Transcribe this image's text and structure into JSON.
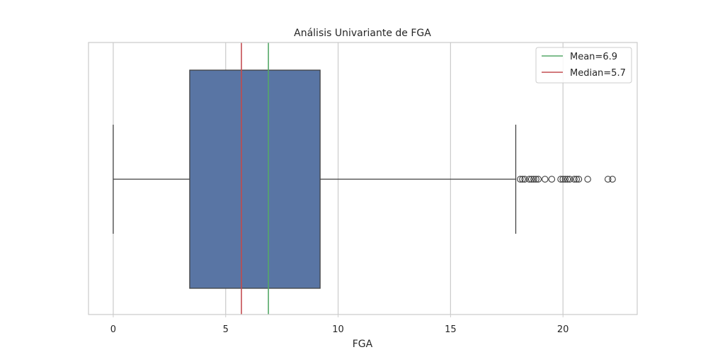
{
  "chart_data": {
    "type": "box",
    "title": "Análisis Univariante de FGA",
    "xlabel": "FGA",
    "ylabel": "",
    "xlim": [
      -1.1,
      23.3
    ],
    "xticks": [
      0,
      5,
      10,
      15,
      20
    ],
    "xtick_labels": [
      "0",
      "5",
      "10",
      "15",
      "20"
    ],
    "grid": "vertical",
    "box": {
      "whisker_low": 0.0,
      "q1": 3.4,
      "median": 5.7,
      "q3": 9.2,
      "whisker_high": 17.9,
      "color": "#5975a4",
      "outliers": [
        18.1,
        18.2,
        18.3,
        18.5,
        18.6,
        18.7,
        18.8,
        18.9,
        19.2,
        19.5,
        19.9,
        20.0,
        20.1,
        20.2,
        20.3,
        20.5,
        20.6,
        20.7,
        21.1,
        22.0,
        22.2
      ]
    },
    "reference_lines": [
      {
        "label": "Mean=6.9",
        "value": 6.9,
        "color": "#55a868"
      },
      {
        "label": "Median=5.7",
        "value": 5.7,
        "color": "#c44e52"
      }
    ],
    "legend_position": "top-right"
  }
}
